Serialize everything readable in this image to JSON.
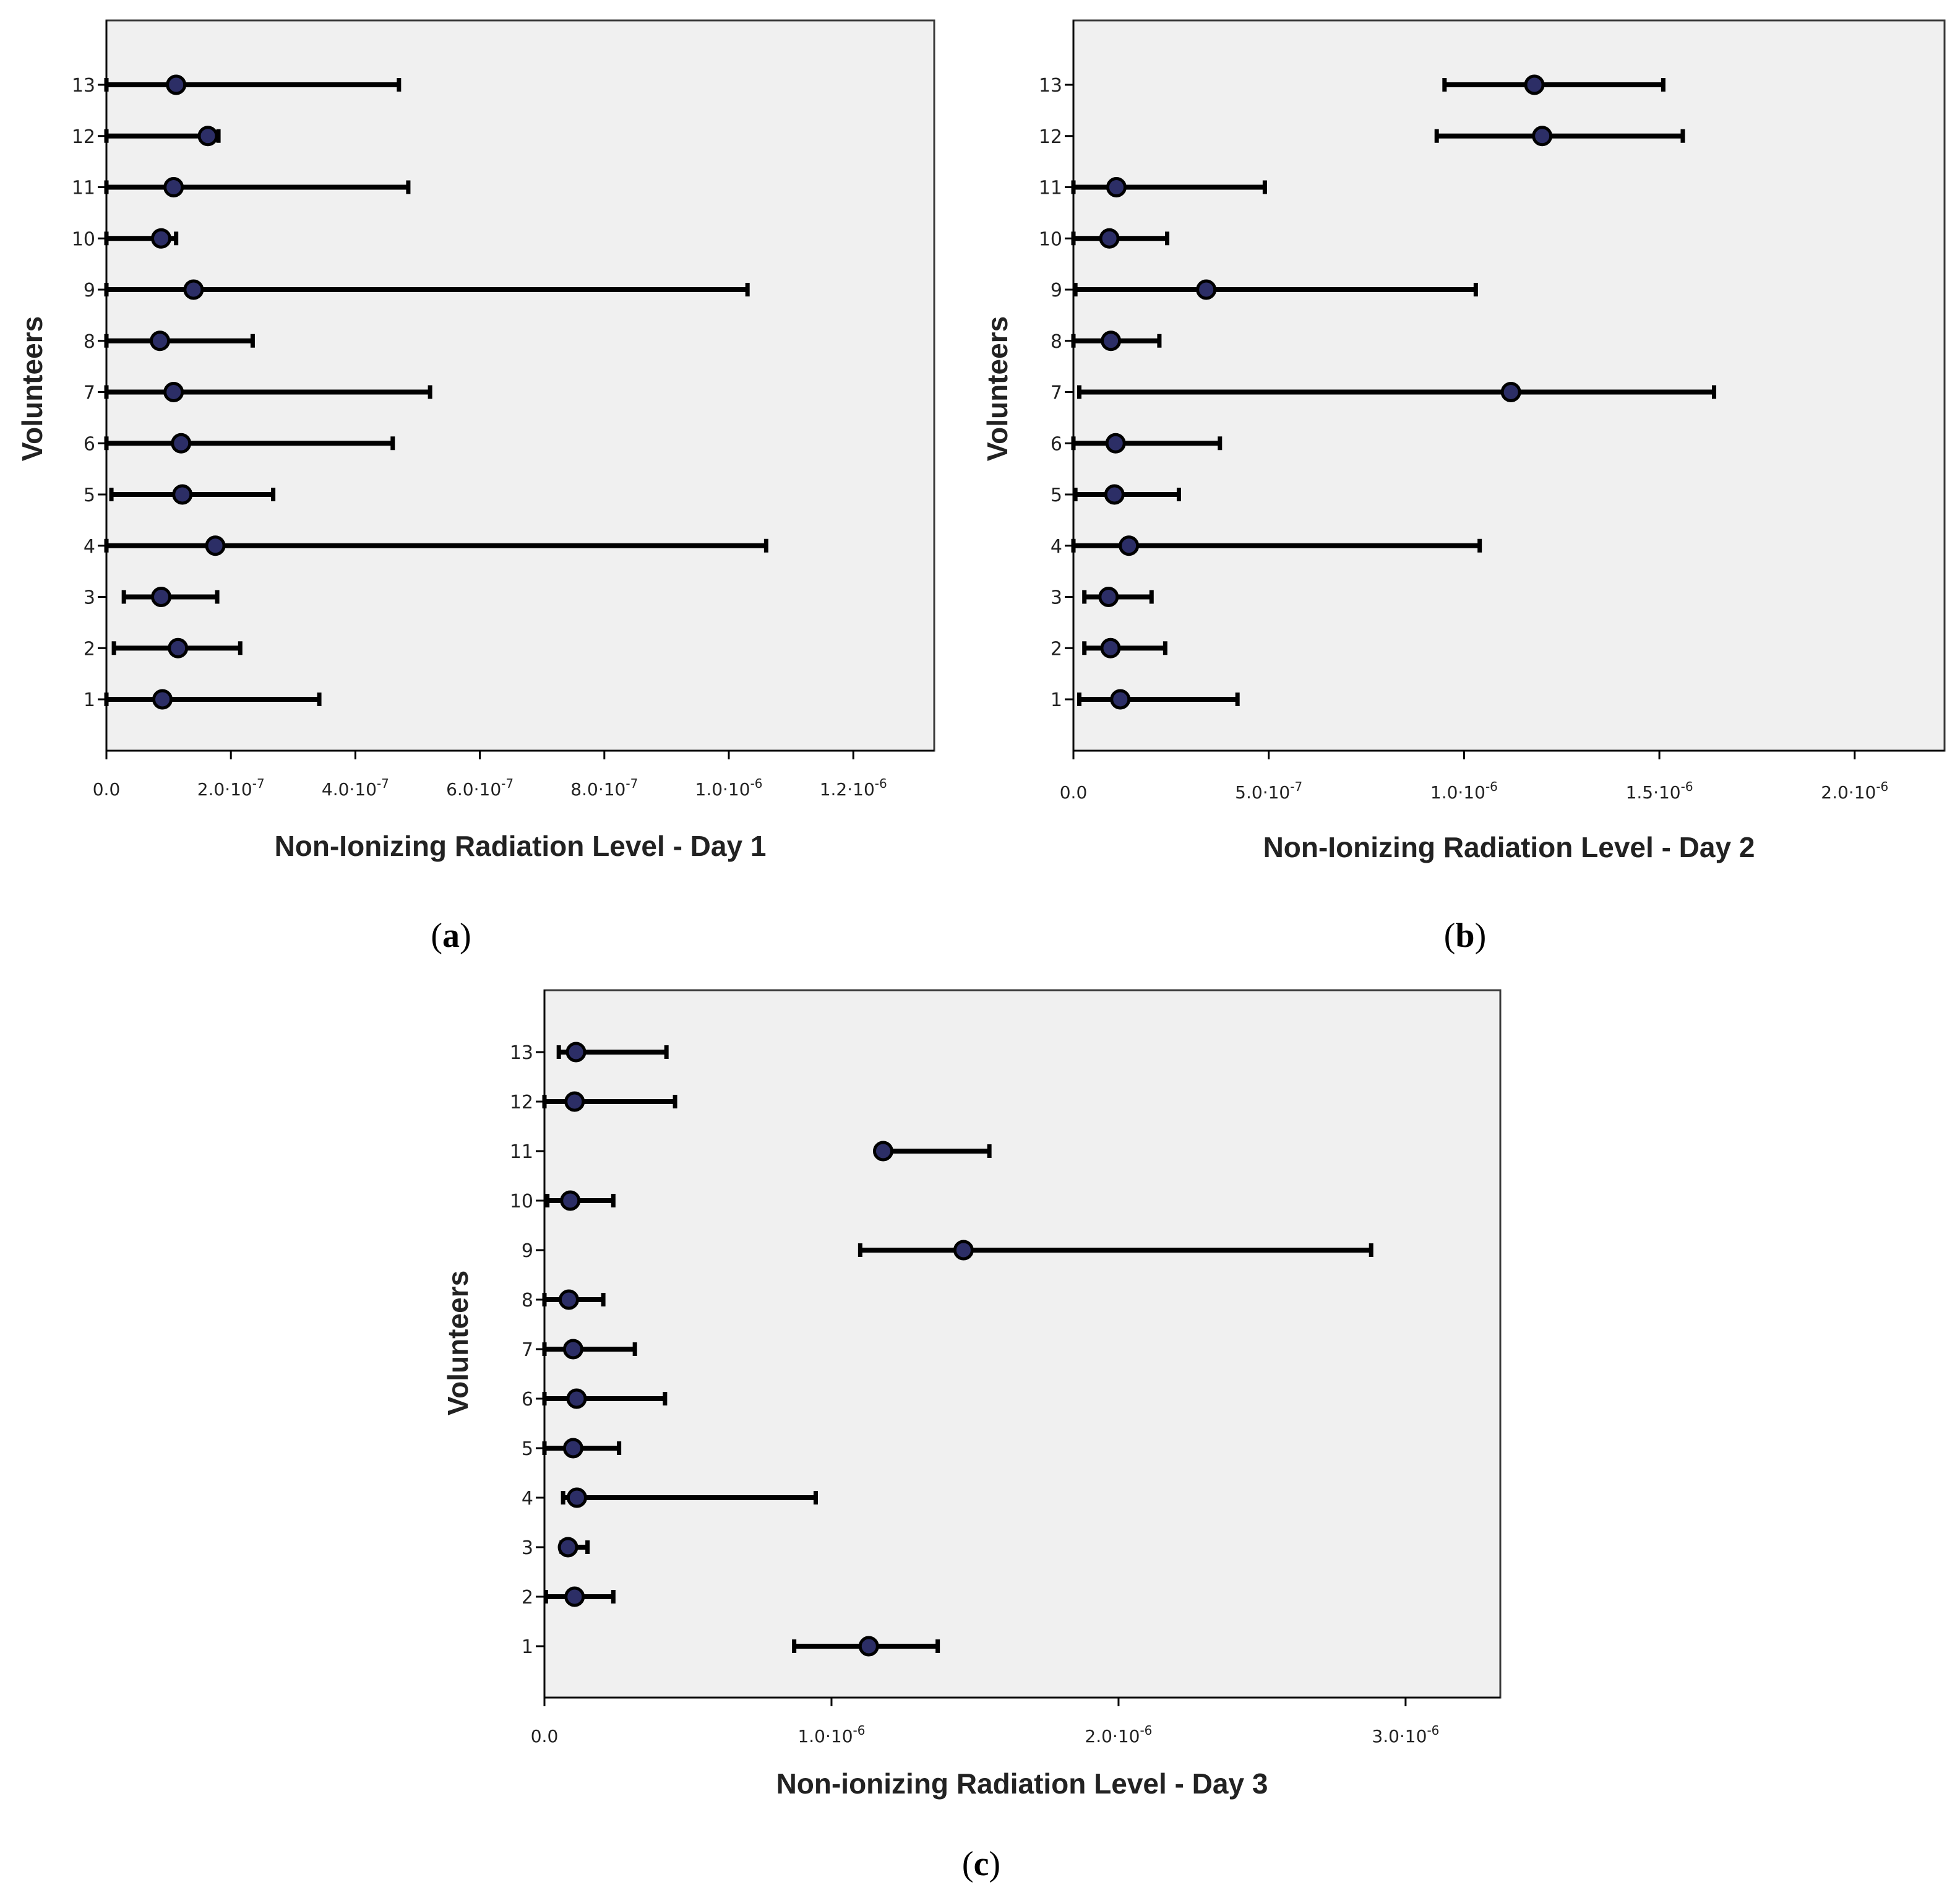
{
  "chart_data": [
    {
      "type": "errorbar",
      "panel_label": "a",
      "xlabel": "Non-Ionizing Radiation Level - Day 1",
      "ylabel": "Volunteers",
      "xlim": [
        0,
        1.33e-06
      ],
      "xticks": [
        {
          "value": 0,
          "base": "0.0",
          "exp": ""
        },
        {
          "value": 2e-07,
          "base": "2.0·10",
          "exp": "-7"
        },
        {
          "value": 4e-07,
          "base": "4.0·10",
          "exp": "-7"
        },
        {
          "value": 6e-07,
          "base": "6.0·10",
          "exp": "-7"
        },
        {
          "value": 8e-07,
          "base": "8.0·10",
          "exp": "-7"
        },
        {
          "value": 1e-06,
          "base": "1.0·10",
          "exp": "-6"
        },
        {
          "value": 1.2e-06,
          "base": "1.2·10",
          "exp": "-6"
        }
      ],
      "categories": [
        "1",
        "2",
        "3",
        "4",
        "5",
        "6",
        "7",
        "8",
        "9",
        "10",
        "11",
        "12",
        "13"
      ],
      "series": [
        {
          "name": "Day 1",
          "mean": [
            9e-08,
            1.15e-07,
            8.8e-08,
            1.75e-07,
            1.22e-07,
            1.2e-07,
            1.08e-07,
            8.6e-08,
            1.4e-07,
            8.8e-08,
            1.08e-07,
            1.63e-07,
            1.12e-07
          ],
          "lower": [
            0,
            1.2e-08,
            2.8e-08,
            0,
            8e-09,
            0,
            0,
            0,
            0,
            0,
            0,
            0,
            0
          ],
          "upper": [
            3.42e-07,
            2.15e-07,
            1.78e-07,
            1.06e-06,
            2.68e-07,
            4.6e-07,
            5.2e-07,
            2.35e-07,
            1.03e-06,
            1.12e-07,
            4.85e-07,
            1.8e-07,
            4.7e-07
          ]
        }
      ]
    },
    {
      "type": "errorbar",
      "panel_label": "b",
      "xlabel": "Non-Ionizing Radiation Level - Day 2",
      "ylabel": "Volunteers",
      "xlim": [
        0,
        2.23e-06
      ],
      "xticks": [
        {
          "value": 0,
          "base": "0.0",
          "exp": ""
        },
        {
          "value": 5e-07,
          "base": "5.0·10",
          "exp": "-7"
        },
        {
          "value": 1e-06,
          "base": "1.0·10",
          "exp": "-6"
        },
        {
          "value": 1.5e-06,
          "base": "1.5·10",
          "exp": "-6"
        },
        {
          "value": 2e-06,
          "base": "2.0·10",
          "exp": "-6"
        }
      ],
      "categories": [
        "1",
        "2",
        "3",
        "4",
        "5",
        "6",
        "7",
        "8",
        "9",
        "10",
        "11",
        "12",
        "13"
      ],
      "series": [
        {
          "name": "Day 2",
          "mean": [
            1.2e-07,
            9.5e-08,
            9e-08,
            1.42e-07,
            1.05e-07,
            1.08e-07,
            1.12e-06,
            9.6e-08,
            3.4e-07,
            9.2e-08,
            1.1e-07,
            1.2e-06,
            1.18e-06
          ],
          "lower": [
            1.5e-08,
            2.8e-08,
            2.8e-08,
            0,
            5e-09,
            0,
            1.5e-08,
            0,
            5e-09,
            0,
            0,
            9.3e-07,
            9.5e-07
          ],
          "upper": [
            4.2e-07,
            2.35e-07,
            2e-07,
            1.04e-06,
            2.7e-07,
            3.75e-07,
            1.64e-06,
            2.2e-07,
            1.03e-06,
            2.4e-07,
            4.9e-07,
            1.56e-06,
            1.51e-06
          ]
        }
      ]
    },
    {
      "type": "errorbar",
      "panel_label": "c",
      "xlabel": "Non-ionizing Radiation Level - Day 3",
      "ylabel": "Volunteers",
      "xlim": [
        0,
        3.33e-06
      ],
      "xticks": [
        {
          "value": 0,
          "base": "0.0",
          "exp": ""
        },
        {
          "value": 1e-06,
          "base": "1.0·10",
          "exp": "-6"
        },
        {
          "value": 2e-06,
          "base": "2.0·10",
          "exp": "-6"
        },
        {
          "value": 3e-06,
          "base": "3.0·10",
          "exp": "-6"
        }
      ],
      "categories": [
        "1",
        "2",
        "3",
        "4",
        "5",
        "6",
        "7",
        "8",
        "9",
        "10",
        "11",
        "12",
        "13"
      ],
      "series": [
        {
          "name": "Day 3",
          "mean": [
            1.13e-06,
            1.05e-07,
            8.2e-08,
            1.13e-07,
            1e-07,
            1.12e-07,
            1e-07,
            8.5e-08,
            1.46e-06,
            9e-08,
            1.18e-06,
            1.05e-07,
            1.1e-07
          ],
          "lower": [
            8.7e-07,
            5e-09,
            6e-08,
            6.5e-08,
            0,
            0,
            0,
            0,
            1.1e-06,
            1e-08,
            1.17e-06,
            0,
            5e-08
          ],
          "upper": [
            1.37e-06,
            2.4e-07,
            1.5e-07,
            9.45e-07,
            2.6e-07,
            4.2e-07,
            3.15e-07,
            2.05e-07,
            2.88e-06,
            2.4e-07,
            1.55e-06,
            4.55e-07,
            4.25e-07
          ]
        }
      ]
    }
  ]
}
